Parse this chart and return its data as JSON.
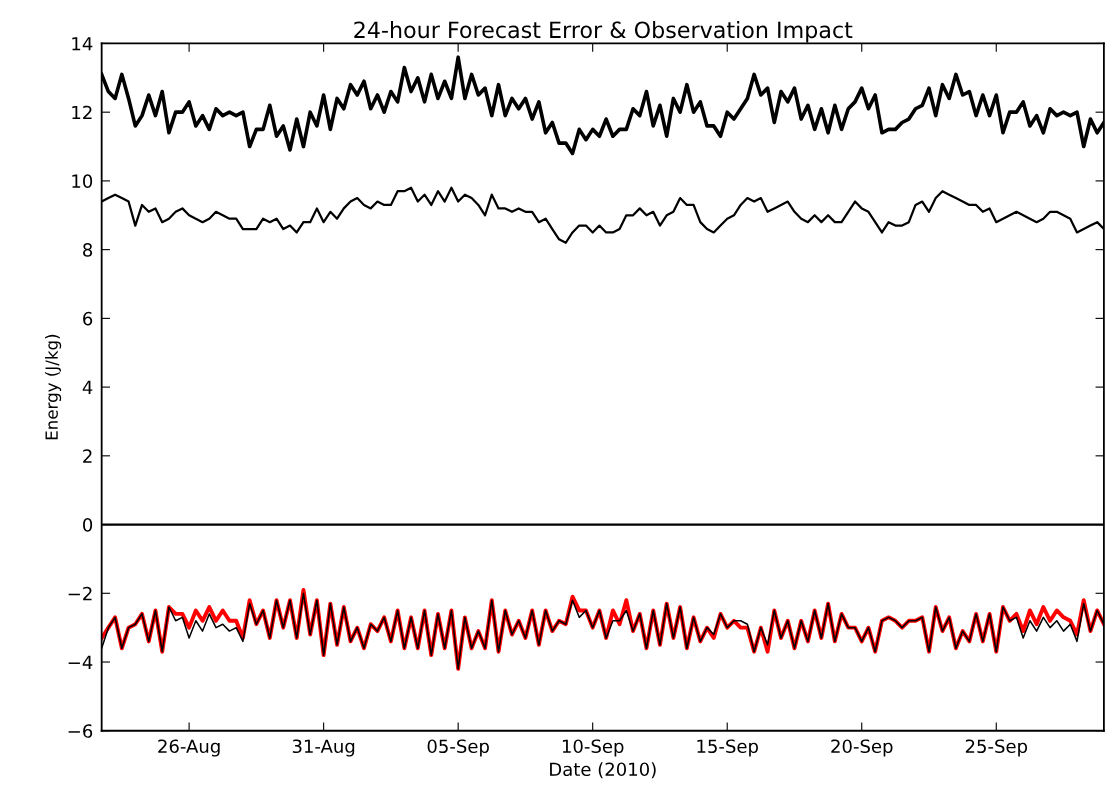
{
  "chart_data": {
    "type": "line",
    "title": "24-hour Forecast Error & Observation Impact",
    "xlabel": "Date (2010)",
    "ylabel": "Energy (J/kg)",
    "x": [
      "2010-08-22T18:00",
      "2010-08-23T00:00",
      "2010-08-23T06:00",
      "2010-08-23T12:00",
      "2010-08-23T18:00",
      "2010-08-24T00:00",
      "2010-08-24T06:00",
      "2010-08-24T12:00",
      "2010-08-24T18:00",
      "2010-08-25T00:00",
      "2010-08-25T06:00",
      "2010-08-25T12:00",
      "2010-08-25T18:00",
      "2010-08-26T00:00",
      "2010-08-26T06:00",
      "2010-08-26T12:00",
      "2010-08-26T18:00",
      "2010-08-27T00:00",
      "2010-08-27T06:00",
      "2010-08-27T12:00",
      "2010-08-27T18:00",
      "2010-08-28T00:00",
      "2010-08-28T06:00",
      "2010-08-28T12:00",
      "2010-08-28T18:00",
      "2010-08-29T00:00",
      "2010-08-29T06:00",
      "2010-08-29T12:00",
      "2010-08-29T18:00",
      "2010-08-30T00:00",
      "2010-08-30T06:00",
      "2010-08-30T12:00",
      "2010-08-30T18:00",
      "2010-08-31T00:00",
      "2010-08-31T06:00",
      "2010-08-31T12:00",
      "2010-08-31T18:00",
      "2010-09-01T00:00",
      "2010-09-01T06:00",
      "2010-09-01T12:00",
      "2010-09-01T18:00",
      "2010-09-02T00:00",
      "2010-09-02T06:00",
      "2010-09-02T12:00",
      "2010-09-02T18:00",
      "2010-09-03T00:00",
      "2010-09-03T06:00",
      "2010-09-03T12:00",
      "2010-09-03T18:00",
      "2010-09-04T00:00",
      "2010-09-04T06:00",
      "2010-09-04T12:00",
      "2010-09-04T18:00",
      "2010-09-05T00:00",
      "2010-09-05T06:00",
      "2010-09-05T12:00",
      "2010-09-05T18:00",
      "2010-09-06T00:00",
      "2010-09-06T06:00",
      "2010-09-06T12:00",
      "2010-09-06T18:00",
      "2010-09-07T00:00",
      "2010-09-07T06:00",
      "2010-09-07T12:00",
      "2010-09-07T18:00",
      "2010-09-08T00:00",
      "2010-09-08T06:00",
      "2010-09-08T12:00",
      "2010-09-08T18:00",
      "2010-09-09T00:00",
      "2010-09-09T06:00",
      "2010-09-09T12:00",
      "2010-09-09T18:00",
      "2010-09-10T00:00",
      "2010-09-10T06:00",
      "2010-09-10T12:00",
      "2010-09-10T18:00",
      "2010-09-11T00:00",
      "2010-09-11T06:00",
      "2010-09-11T12:00",
      "2010-09-11T18:00",
      "2010-09-12T00:00",
      "2010-09-12T06:00",
      "2010-09-12T12:00",
      "2010-09-12T18:00",
      "2010-09-13T00:00",
      "2010-09-13T06:00",
      "2010-09-13T12:00",
      "2010-09-13T18:00",
      "2010-09-14T00:00",
      "2010-09-14T06:00",
      "2010-09-14T12:00",
      "2010-09-14T18:00",
      "2010-09-15T00:00",
      "2010-09-15T06:00",
      "2010-09-15T12:00",
      "2010-09-15T18:00",
      "2010-09-16T00:00",
      "2010-09-16T06:00",
      "2010-09-16T12:00",
      "2010-09-16T18:00",
      "2010-09-17T00:00",
      "2010-09-17T06:00",
      "2010-09-17T12:00",
      "2010-09-17T18:00",
      "2010-09-18T00:00",
      "2010-09-18T06:00",
      "2010-09-18T12:00",
      "2010-09-18T18:00",
      "2010-09-19T00:00",
      "2010-09-19T06:00",
      "2010-09-19T12:00",
      "2010-09-19T18:00",
      "2010-09-20T00:00",
      "2010-09-20T06:00",
      "2010-09-20T12:00",
      "2010-09-20T18:00",
      "2010-09-21T00:00",
      "2010-09-21T06:00",
      "2010-09-21T12:00",
      "2010-09-21T18:00",
      "2010-09-22T00:00",
      "2010-09-22T06:00",
      "2010-09-22T12:00",
      "2010-09-22T18:00",
      "2010-09-23T00:00",
      "2010-09-23T06:00",
      "2010-09-23T12:00",
      "2010-09-23T18:00",
      "2010-09-24T00:00",
      "2010-09-24T06:00",
      "2010-09-24T12:00",
      "2010-09-24T18:00",
      "2010-09-25T00:00",
      "2010-09-25T06:00",
      "2010-09-25T12:00",
      "2010-09-25T18:00",
      "2010-09-26T00:00",
      "2010-09-26T06:00",
      "2010-09-26T12:00",
      "2010-09-26T18:00",
      "2010-09-27T00:00",
      "2010-09-27T06:00",
      "2010-09-27T12:00",
      "2010-09-27T18:00",
      "2010-09-28T00:00",
      "2010-09-28T06:00",
      "2010-09-28T12:00",
      "2010-09-28T18:00",
      "2010-09-29T00:00"
    ],
    "series": [
      {
        "color": "#000000",
        "values": [
          13.1,
          12.6,
          12.4,
          13.1,
          12.4,
          11.6,
          11.9,
          12.5,
          11.9,
          12.6,
          11.4,
          12.0,
          12.0,
          12.3,
          11.6,
          11.9,
          11.5,
          12.1,
          11.9,
          12.0,
          11.9,
          12.0,
          11.0,
          11.5,
          11.5,
          12.2,
          11.3,
          11.6,
          10.9,
          11.8,
          11.0,
          12.0,
          11.6,
          12.5,
          11.5,
          12.4,
          12.1,
          12.8,
          12.5,
          12.9,
          12.1,
          12.5,
          12.0,
          12.6,
          12.3,
          13.3,
          12.6,
          13.0,
          12.3,
          13.1,
          12.4,
          12.9,
          12.4,
          13.6,
          12.4,
          13.1,
          12.5,
          12.7,
          11.9,
          12.8,
          11.9,
          12.4,
          12.1,
          12.4,
          11.8,
          12.3,
          11.4,
          11.7,
          11.1,
          11.1,
          10.8,
          11.5,
          11.2,
          11.5,
          11.3,
          11.8,
          11.3,
          11.5,
          11.5,
          12.1,
          11.9,
          12.6,
          11.6,
          12.2,
          11.3,
          12.4,
          12.0,
          12.8,
          12.0,
          12.3,
          11.6,
          11.6,
          11.3,
          12.0,
          11.8,
          12.1,
          12.4,
          13.1,
          12.5,
          12.7,
          11.7,
          12.6,
          12.3,
          12.7,
          11.8,
          12.2,
          11.5,
          12.1,
          11.4,
          12.2,
          11.5,
          12.1,
          12.3,
          12.7,
          12.1,
          12.5,
          11.4,
          11.5,
          11.5,
          11.7,
          11.8,
          12.1,
          12.2,
          12.7,
          11.9,
          12.8,
          12.4,
          13.1,
          12.5,
          12.6,
          11.9,
          12.5,
          11.9,
          12.5,
          11.4,
          12.0,
          12.0,
          12.3,
          11.6,
          11.9,
          11.4,
          12.1,
          11.9,
          12.0,
          11.9,
          12.0,
          11.0,
          11.8,
          11.4,
          11.7
        ]
      },
      {
        "color": "#000000",
        "values": [
          9.4,
          9.5,
          9.6,
          9.5,
          9.4,
          8.7,
          9.3,
          9.1,
          9.2,
          8.8,
          8.9,
          9.1,
          9.2,
          9.0,
          8.9,
          8.8,
          8.9,
          9.1,
          9.0,
          8.9,
          8.9,
          8.6,
          8.6,
          8.6,
          8.9,
          8.8,
          8.9,
          8.6,
          8.7,
          8.5,
          8.8,
          8.8,
          9.2,
          8.8,
          9.1,
          8.9,
          9.2,
          9.4,
          9.5,
          9.3,
          9.2,
          9.4,
          9.3,
          9.3,
          9.7,
          9.7,
          9.8,
          9.4,
          9.6,
          9.3,
          9.7,
          9.4,
          9.8,
          9.4,
          9.6,
          9.5,
          9.3,
          9.0,
          9.6,
          9.2,
          9.2,
          9.1,
          9.2,
          9.1,
          9.1,
          8.8,
          8.9,
          8.6,
          8.3,
          8.2,
          8.5,
          8.7,
          8.7,
          8.5,
          8.7,
          8.5,
          8.5,
          8.6,
          9.0,
          9.0,
          9.2,
          9.0,
          9.1,
          8.7,
          9.0,
          9.1,
          9.5,
          9.3,
          9.3,
          8.8,
          8.6,
          8.5,
          8.7,
          8.9,
          9.0,
          9.3,
          9.5,
          9.4,
          9.5,
          9.1,
          9.2,
          9.3,
          9.4,
          9.1,
          8.9,
          8.8,
          9.0,
          8.8,
          9.0,
          8.8,
          8.8,
          9.1,
          9.4,
          9.2,
          9.1,
          8.8,
          8.5,
          8.8,
          8.7,
          8.7,
          8.8,
          9.3,
          9.4,
          9.1,
          9.5,
          9.7,
          9.6,
          9.5,
          9.4,
          9.3,
          9.3,
          9.1,
          9.2,
          8.8,
          8.9,
          9.0,
          9.1,
          9.0,
          8.9,
          8.8,
          8.9,
          9.1,
          9.1,
          9.0,
          8.9,
          8.5,
          8.6,
          8.7,
          8.8,
          8.6
        ]
      },
      {
        "color": "#ff0000",
        "values": [
          -3.3,
          -3.0,
          -2.7,
          -3.6,
          -3.0,
          -2.9,
          -2.6,
          -3.4,
          -2.5,
          -3.7,
          -2.4,
          -2.6,
          -2.6,
          -3.0,
          -2.5,
          -2.8,
          -2.4,
          -2.8,
          -2.5,
          -2.8,
          -2.8,
          -3.3,
          -2.2,
          -2.9,
          -2.5,
          -3.3,
          -2.2,
          -3.0,
          -2.2,
          -3.3,
          -1.9,
          -3.2,
          -2.2,
          -3.8,
          -2.3,
          -3.5,
          -2.4,
          -3.4,
          -3.0,
          -3.6,
          -2.9,
          -3.1,
          -2.7,
          -3.4,
          -2.5,
          -3.6,
          -2.7,
          -3.6,
          -2.5,
          -3.8,
          -2.6,
          -3.6,
          -2.5,
          -4.2,
          -2.7,
          -3.6,
          -3.1,
          -3.6,
          -2.2,
          -3.7,
          -2.5,
          -3.2,
          -2.8,
          -3.3,
          -2.5,
          -3.5,
          -2.5,
          -3.1,
          -2.8,
          -2.9,
          -2.1,
          -2.5,
          -2.5,
          -3.0,
          -2.5,
          -3.3,
          -2.5,
          -2.9,
          -2.2,
          -3.1,
          -2.6,
          -3.6,
          -2.5,
          -3.5,
          -2.3,
          -3.3,
          -2.4,
          -3.6,
          -2.7,
          -3.4,
          -3.0,
          -3.3,
          -2.6,
          -3.0,
          -2.8,
          -3.0,
          -3.0,
          -3.7,
          -3.0,
          -3.7,
          -2.5,
          -3.3,
          -2.8,
          -3.6,
          -2.8,
          -3.4,
          -2.5,
          -3.3,
          -2.3,
          -3.4,
          -2.6,
          -3.0,
          -3.0,
          -3.4,
          -3.0,
          -3.7,
          -2.8,
          -2.7,
          -2.8,
          -3.0,
          -2.8,
          -2.8,
          -2.7,
          -3.7,
          -2.4,
          -3.1,
          -2.7,
          -3.6,
          -3.1,
          -3.4,
          -2.6,
          -3.4,
          -2.6,
          -3.7,
          -2.4,
          -2.8,
          -2.6,
          -3.1,
          -2.5,
          -2.9,
          -2.4,
          -2.8,
          -2.5,
          -2.7,
          -2.8,
          -3.2,
          -2.2,
          -3.1,
          -2.5,
          -2.9
        ]
      },
      {
        "color": "#000000",
        "values": [
          -3.6,
          -3.0,
          -2.7,
          -3.6,
          -3.0,
          -2.9,
          -2.6,
          -3.4,
          -2.5,
          -3.7,
          -2.4,
          -2.8,
          -2.7,
          -3.3,
          -2.8,
          -3.1,
          -2.6,
          -3.0,
          -2.9,
          -3.1,
          -3.0,
          -3.4,
          -2.3,
          -2.9,
          -2.5,
          -3.3,
          -2.2,
          -3.0,
          -2.2,
          -3.3,
          -2.0,
          -3.2,
          -2.2,
          -3.8,
          -2.3,
          -3.5,
          -2.4,
          -3.4,
          -3.0,
          -3.6,
          -2.9,
          -3.1,
          -2.7,
          -3.4,
          -2.5,
          -3.6,
          -2.7,
          -3.6,
          -2.5,
          -3.8,
          -2.6,
          -3.6,
          -2.5,
          -4.2,
          -2.7,
          -3.6,
          -3.1,
          -3.6,
          -2.2,
          -3.7,
          -2.5,
          -3.2,
          -2.8,
          -3.3,
          -2.5,
          -3.5,
          -2.5,
          -3.1,
          -2.8,
          -2.9,
          -2.2,
          -2.7,
          -2.5,
          -3.0,
          -2.5,
          -3.3,
          -2.8,
          -2.8,
          -2.5,
          -3.1,
          -2.6,
          -3.6,
          -2.5,
          -3.5,
          -2.3,
          -3.3,
          -2.4,
          -3.6,
          -2.7,
          -3.4,
          -3.0,
          -3.2,
          -2.6,
          -3.0,
          -2.8,
          -2.8,
          -2.9,
          -3.7,
          -3.0,
          -3.5,
          -2.5,
          -3.3,
          -2.8,
          -3.6,
          -2.8,
          -3.4,
          -2.5,
          -3.3,
          -2.3,
          -3.4,
          -2.6,
          -3.0,
          -3.0,
          -3.4,
          -3.0,
          -3.7,
          -2.8,
          -2.7,
          -2.8,
          -3.0,
          -2.8,
          -2.8,
          -2.7,
          -3.7,
          -2.4,
          -3.1,
          -2.7,
          -3.6,
          -3.1,
          -3.4,
          -2.6,
          -3.4,
          -2.6,
          -3.7,
          -2.4,
          -2.8,
          -2.7,
          -3.3,
          -2.8,
          -3.1,
          -2.7,
          -3.0,
          -2.8,
          -3.1,
          -2.9,
          -3.4,
          -2.3,
          -3.1,
          -2.5,
          -2.9
        ]
      }
    ],
    "xlim": [
      "2010-08-22T18:00",
      "2010-09-29T00:00"
    ],
    "xticks": [
      {
        "value": "2010-08-26",
        "label": "26-Aug"
      },
      {
        "value": "2010-08-31",
        "label": "31-Aug"
      },
      {
        "value": "2010-09-05",
        "label": "05-Sep"
      },
      {
        "value": "2010-09-10",
        "label": "10-Sep"
      },
      {
        "value": "2010-09-15",
        "label": "15-Sep"
      },
      {
        "value": "2010-09-20",
        "label": "20-Sep"
      },
      {
        "value": "2010-09-25",
        "label": "25-Sep"
      }
    ],
    "ylim": [
      -6,
      14
    ],
    "yticks": [
      {
        "value": -6,
        "label": "−6"
      },
      {
        "value": -4,
        "label": "−4"
      },
      {
        "value": -2,
        "label": "−2"
      },
      0,
      2,
      4,
      6,
      8,
      10,
      12,
      14
    ],
    "ref_lines": [
      {
        "axis": "y",
        "value": 0,
        "color": "#000000"
      }
    ],
    "grid": false,
    "marker": "none",
    "line_style": "solid"
  }
}
